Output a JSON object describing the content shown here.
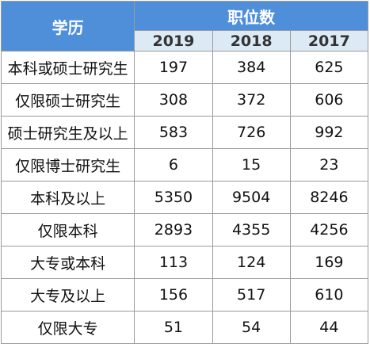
{
  "header": {
    "edu_label": "学历",
    "positions_label": "职位数",
    "years": [
      "2019",
      "2018",
      "2017"
    ]
  },
  "rows": [
    {
      "edu": "本科或硕士研究生",
      "values": [
        "197",
        "384",
        "625"
      ]
    },
    {
      "edu": "仅限硕士研究生",
      "values": [
        "308",
        "372",
        "606"
      ]
    },
    {
      "edu": "硕士研究生及以上",
      "values": [
        "583",
        "726",
        "992"
      ]
    },
    {
      "edu": "仅限博士研究生",
      "values": [
        "6",
        "15",
        "23"
      ]
    },
    {
      "edu": "本科及以上",
      "values": [
        "5350",
        "9504",
        "8246"
      ]
    },
    {
      "edu": "仅限本科",
      "values": [
        "2893",
        "4355",
        "4256"
      ]
    },
    {
      "edu": "大专或本科",
      "values": [
        "113",
        "124",
        "169"
      ]
    },
    {
      "edu": "大专及以上",
      "values": [
        "156",
        "517",
        "610"
      ]
    },
    {
      "edu": "仅限大专",
      "values": [
        "51",
        "54",
        "44"
      ]
    }
  ],
  "colors": {
    "header_bg": "#4f8fd9",
    "subheader_bg": "#dceaf6",
    "border": "#9a9a9a"
  }
}
